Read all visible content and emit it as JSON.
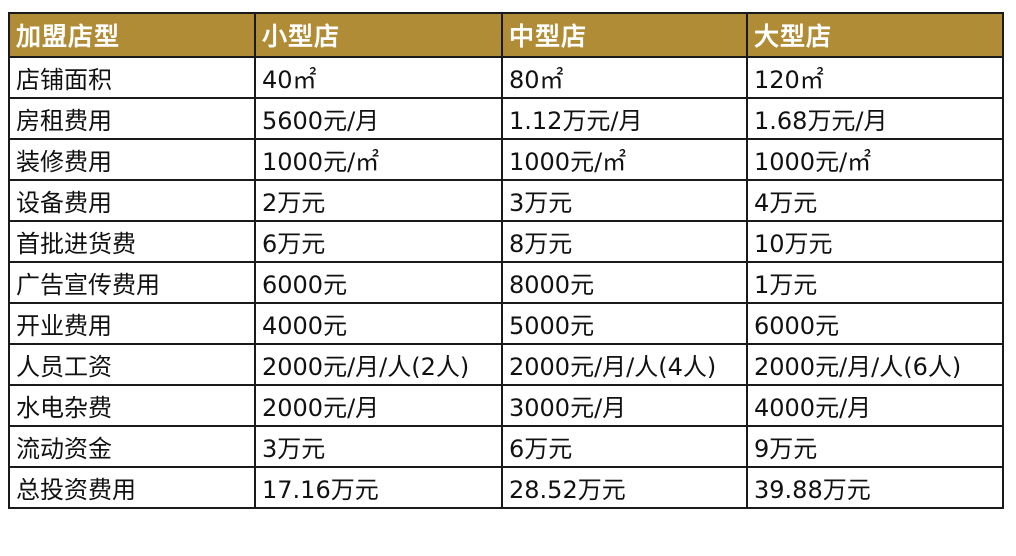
{
  "table": {
    "headers": [
      "加盟店型",
      "小型店",
      "中型店",
      "大型店"
    ],
    "rows": [
      [
        "店铺面积",
        "40㎡",
        "80㎡",
        "120㎡"
      ],
      [
        "房租费用",
        "5600元/月",
        "1.12万元/月",
        "1.68万元/月"
      ],
      [
        "装修费用",
        "1000元/㎡",
        "1000元/㎡",
        "1000元/㎡"
      ],
      [
        "设备费用",
        "2万元",
        "3万元",
        "4万元"
      ],
      [
        "首批进货费",
        "6万元",
        "8万元",
        "10万元"
      ],
      [
        "广告宣传费用",
        "6000元",
        "8000元",
        "1万元"
      ],
      [
        "开业费用",
        "4000元",
        "5000元",
        "6000元"
      ],
      [
        "人员工资",
        "2000元/月/人(2人)",
        "2000元/月/人(4人)",
        "2000元/月/人(6人)"
      ],
      [
        "水电杂费",
        "2000元/月",
        "3000元/月",
        "4000元/月"
      ],
      [
        "流动资金",
        "3万元",
        "6万元",
        "9万元"
      ],
      [
        "总投资费用",
        "17.16万元",
        "28.52万元",
        "39.88万元"
      ]
    ]
  },
  "colors": {
    "header_background": "#b08c37",
    "header_text": "#ffffff",
    "border": "#1a1a1a",
    "body_text": "#111111"
  }
}
